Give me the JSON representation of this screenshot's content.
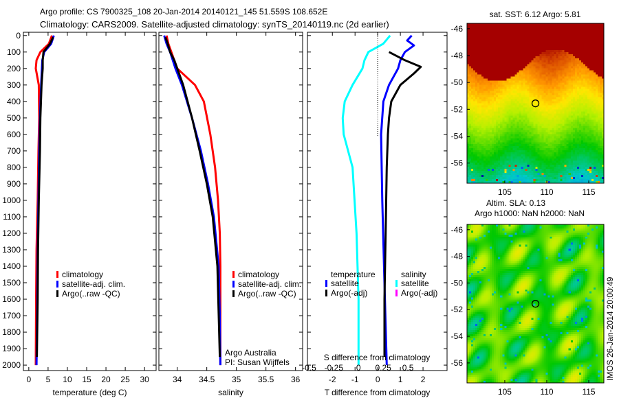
{
  "title_line1": "Argo profile: CS 7900325_108 20-Jan-2014 20140121_145 51.559S 108.652E",
  "title_line2": "Climatology: CARS2009. Satellite-adjusted climatology: synTS_20140119.nc (2d earlier)",
  "footer_vertical": "IMOS 26-Jan-2014 20:00:49",
  "credits": {
    "line1": "Argo Australia",
    "line2": "PI: Susan Wijffels"
  },
  "colors": {
    "climatology": "#ff0000",
    "satellite": "#0000ff",
    "argo": "#000000",
    "salinity_sat": "#00ffff",
    "salinity_argo": "#ff00ff"
  },
  "chart_data": [
    {
      "type": "line",
      "id": "temperature",
      "xlabel": "temperature (deg C)",
      "ylabel": "",
      "xlim": [
        -1.4,
        33
      ],
      "ylim": [
        2033,
        -20
      ],
      "xticks": [
        0,
        5,
        10,
        15,
        20,
        25,
        30
      ],
      "yticks": [
        0,
        100,
        200,
        300,
        400,
        500,
        600,
        700,
        800,
        900,
        1000,
        1100,
        1200,
        1300,
        1400,
        1500,
        1600,
        1700,
        1800,
        1900,
        2000
      ],
      "legend": [
        "climatology",
        "satellite-adj. clim.",
        "Argo(..raw -QC)"
      ],
      "series": [
        {
          "name": "climatology",
          "color": "#ff0000",
          "depth": [
            0,
            50,
            100,
            150,
            200,
            300,
            500,
            700,
            1000,
            1300,
            1600,
            2000
          ],
          "values": [
            6.0,
            5.2,
            3.0,
            2.0,
            1.8,
            2.6,
            2.7,
            2.5,
            2.3,
            2.0,
            1.9,
            1.8
          ]
        },
        {
          "name": "satellite-adj. clim.",
          "color": "#0000ff",
          "depth": [
            0,
            50,
            100,
            150,
            200,
            300,
            500,
            700,
            1000,
            1300,
            1600,
            2000
          ],
          "values": [
            6.5,
            5.8,
            4.0,
            3.5,
            3.4,
            3.2,
            2.9,
            2.7,
            2.5,
            2.3,
            2.2,
            2.0
          ]
        },
        {
          "name": "Argo(..raw -QC)",
          "color": "#000000",
          "depth": [
            10,
            50,
            100,
            150,
            200,
            300,
            500,
            700,
            1000,
            1300,
            1600,
            1950
          ],
          "values": [
            6.3,
            5.5,
            3.8,
            3.6,
            3.6,
            3.3,
            3.0,
            2.9,
            2.6,
            2.4,
            2.3,
            2.1
          ]
        }
      ]
    },
    {
      "type": "line",
      "id": "salinity",
      "xlabel": "salinity",
      "xlim": [
        33.69,
        36.12
      ],
      "ylim": [
        2033,
        -20
      ],
      "xticks": [
        34,
        34.5,
        35,
        35.5,
        36
      ],
      "legend": [
        "climatology",
        "satellite-adj. clim.",
        "Argo(..raw -QC)"
      ],
      "series": [
        {
          "name": "climatology",
          "color": "#ff0000",
          "depth": [
            0,
            50,
            100,
            200,
            300,
            400,
            600,
            800,
            1000,
            1200,
            1400,
            2000
          ],
          "values": [
            33.82,
            33.85,
            33.9,
            34.0,
            34.3,
            34.45,
            34.56,
            34.64,
            34.69,
            34.72,
            34.73,
            34.73
          ]
        },
        {
          "name": "satellite-adj. clim.",
          "color": "#0000ff",
          "depth": [
            0,
            50,
            100,
            200,
            300,
            500,
            700,
            900,
            1100,
            1400,
            1700,
            2000
          ],
          "values": [
            33.78,
            33.82,
            33.88,
            33.97,
            34.08,
            34.25,
            34.4,
            34.52,
            34.62,
            34.7,
            34.72,
            34.73
          ]
        },
        {
          "name": "Argo(..raw -QC)",
          "color": "#000000",
          "depth": [
            10,
            50,
            100,
            150,
            200,
            300,
            500,
            700,
            900,
            1100,
            1400,
            1950
          ],
          "values": [
            33.8,
            33.84,
            33.88,
            33.95,
            34.0,
            34.1,
            34.25,
            34.38,
            34.5,
            34.6,
            34.68,
            34.72
          ]
        }
      ]
    },
    {
      "type": "line",
      "id": "difference",
      "xlabel": "T difference from climatology",
      "xlabel2": "S difference from climatology",
      "xlim": [
        -3.1,
        3.06
      ],
      "xlim2": [
        -0.5172,
        0.8966
      ],
      "ylim": [
        2033,
        -20
      ],
      "xticks": [
        -2,
        -1,
        0,
        1,
        2
      ],
      "xticks2": [
        -0.5,
        -0.25,
        0,
        0.25,
        0.5
      ],
      "legend_headers": [
        "temperature",
        "salinity"
      ],
      "legend": [
        "satellite",
        "Argo(-adj)",
        "satellite",
        "Argo(-adj)"
      ],
      "series": [
        {
          "name": "temperature satellite",
          "color": "#0000ff",
          "axis": "T",
          "depth": [
            0,
            30,
            60,
            100,
            150,
            200,
            250,
            300,
            400,
            600,
            1000,
            1500,
            2000
          ],
          "values": [
            1.5,
            1.3,
            1.6,
            1.2,
            1.0,
            0.9,
            0.7,
            0.5,
            0.25,
            0.15,
            0.2,
            0.3,
            0.4
          ]
        },
        {
          "name": "temperature Argo(-adj)",
          "color": "#000000",
          "axis": "T",
          "depth": [
            100,
            150,
            190,
            230,
            300,
            400,
            500,
            600,
            800,
            1200,
            1600,
            1950
          ],
          "values": [
            0.5,
            1.2,
            1.9,
            1.6,
            1.0,
            0.6,
            0.5,
            0.45,
            0.4,
            0.35,
            0.3,
            0.3
          ]
        },
        {
          "name": "salinity satellite",
          "color": "#00ffff",
          "axis": "S",
          "depth": [
            0,
            50,
            100,
            150,
            200,
            300,
            400,
            500,
            600,
            800,
            1200,
            1600,
            2000
          ],
          "values": [
            0.32,
            0.25,
            0.1,
            0.06,
            0.04,
            -0.06,
            -0.14,
            -0.16,
            -0.15,
            -0.06,
            -0.02,
            0,
            0
          ]
        }
      ]
    },
    {
      "type": "heatmap",
      "id": "sst-map",
      "title": "sat. SST: 6.12 Argo: 5.81",
      "xlim": [
        100.5,
        116.8
      ],
      "ylim": [
        -57.5,
        -45.6
      ],
      "xticks": [
        105,
        110,
        115
      ],
      "yticks": [
        -46,
        -48,
        -50,
        -52,
        -54,
        -56
      ],
      "marker": {
        "lon": 108.652,
        "lat": -51.559
      }
    },
    {
      "type": "heatmap",
      "id": "sla-map",
      "title": "Altim. SLA: 0.13",
      "subtitle": "Argo h1000: NaN h2000: NaN",
      "xlim": [
        100.5,
        116.8
      ],
      "ylim": [
        -57.5,
        -45.6
      ],
      "xticks": [
        105,
        110,
        115
      ],
      "yticks": [
        -46,
        -48,
        -50,
        -52,
        -54,
        -56
      ],
      "marker": {
        "lon": 108.652,
        "lat": -51.559
      }
    }
  ]
}
